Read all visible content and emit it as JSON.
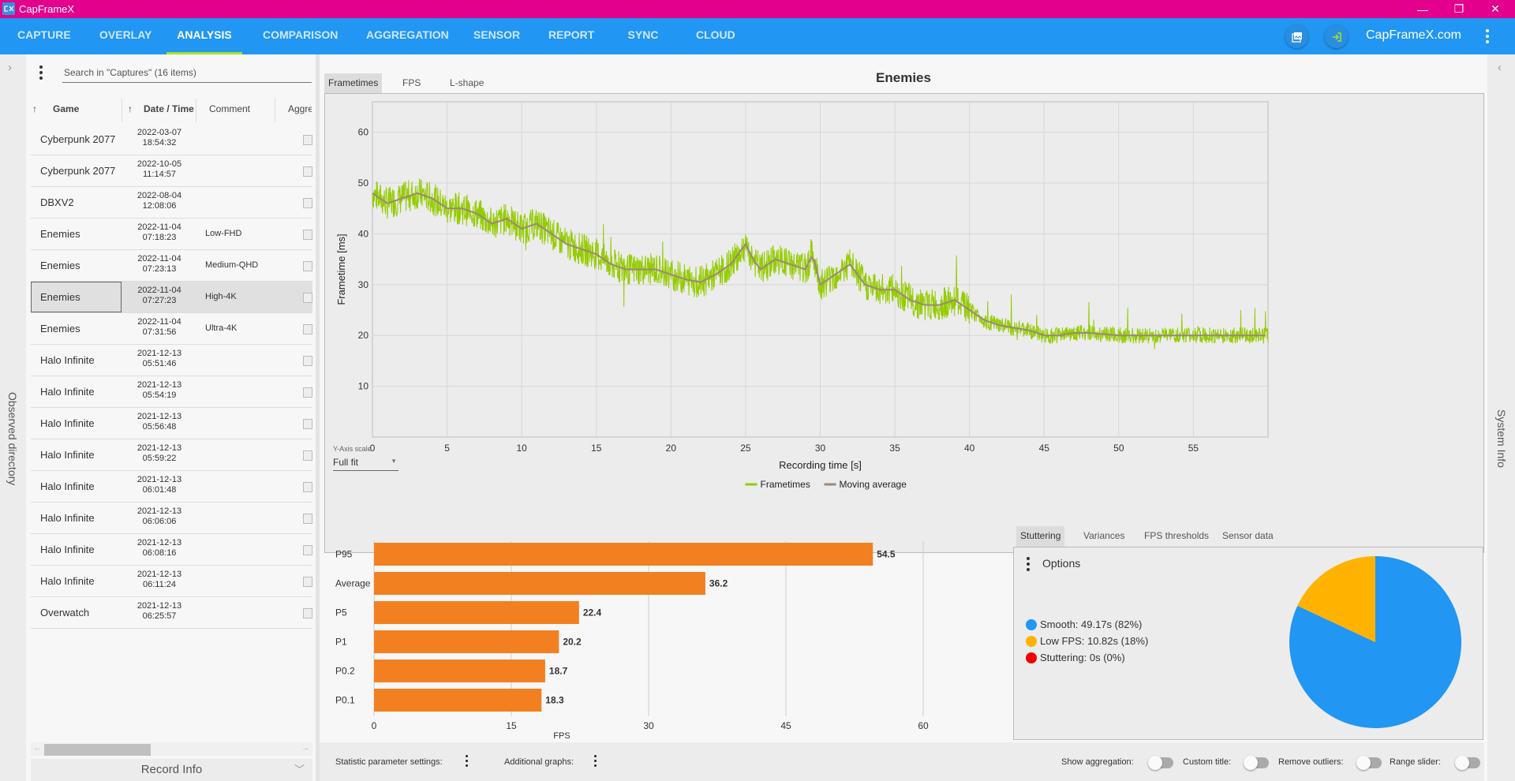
{
  "window": {
    "title": "CapFrameX",
    "controls": {
      "minimize": "—",
      "restore": "❐",
      "close": "✕"
    }
  },
  "nav": {
    "tabs": [
      {
        "label": "CAPTURE",
        "active": false
      },
      {
        "label": "OVERLAY",
        "active": false
      },
      {
        "label": "ANALYSIS",
        "active": true
      },
      {
        "label": "COMPARISON",
        "active": false
      },
      {
        "label": "AGGREGATION",
        "active": false
      },
      {
        "label": "SENSOR",
        "active": false
      },
      {
        "label": "REPORT",
        "active": false
      },
      {
        "label": "SYNC",
        "active": false
      },
      {
        "label": "CLOUD",
        "active": false
      }
    ],
    "link": "CapFrameX.com",
    "icons": {
      "screenshot": "image-gallery-icon",
      "login": "login-icon",
      "menu": "kebab-menu-icon"
    }
  },
  "left_strip": {
    "label": "Observed directory",
    "expand_icon": "chevron-right-icon"
  },
  "right_strip": {
    "label": "System Info",
    "expand_icon": "chevron-left-icon"
  },
  "captures": {
    "search_placeholder": "Search in \"Captures\" (16 items)",
    "columns": [
      "Game",
      "Date / Time",
      "Comment",
      "Aggre"
    ],
    "rows": [
      {
        "game": "Cyberpunk 2077",
        "date": "2022-03-07",
        "time": "18:54:32",
        "comment": "",
        "selected": false
      },
      {
        "game": "Cyberpunk 2077",
        "date": "2022-10-05",
        "time": "11:14:57",
        "comment": "",
        "selected": false
      },
      {
        "game": "DBXV2",
        "date": "2022-08-04",
        "time": "12:08:06",
        "comment": "",
        "selected": false
      },
      {
        "game": "Enemies",
        "date": "2022-11-04",
        "time": "07:18:23",
        "comment": "Low-FHD",
        "selected": false
      },
      {
        "game": "Enemies",
        "date": "2022-11-04",
        "time": "07:23:13",
        "comment": "Medium-QHD",
        "selected": false
      },
      {
        "game": "Enemies",
        "date": "2022-11-04",
        "time": "07:27:23",
        "comment": "High-4K",
        "selected": true
      },
      {
        "game": "Enemies",
        "date": "2022-11-04",
        "time": "07:31:56",
        "comment": "Ultra-4K",
        "selected": false
      },
      {
        "game": "Halo Infinite",
        "date": "2021-12-13",
        "time": "05:51:46",
        "comment": "",
        "selected": false
      },
      {
        "game": "Halo Infinite",
        "date": "2021-12-13",
        "time": "05:54:19",
        "comment": "",
        "selected": false
      },
      {
        "game": "Halo Infinite",
        "date": "2021-12-13",
        "time": "05:56:48",
        "comment": "",
        "selected": false
      },
      {
        "game": "Halo Infinite",
        "date": "2021-12-13",
        "time": "05:59:22",
        "comment": "",
        "selected": false
      },
      {
        "game": "Halo Infinite",
        "date": "2021-12-13",
        "time": "06:01:48",
        "comment": "",
        "selected": false
      },
      {
        "game": "Halo Infinite",
        "date": "2021-12-13",
        "time": "06:06:06",
        "comment": "",
        "selected": false
      },
      {
        "game": "Halo Infinite",
        "date": "2021-12-13",
        "time": "06:08:16",
        "comment": "",
        "selected": false
      },
      {
        "game": "Halo Infinite",
        "date": "2021-12-13",
        "time": "06:11:24",
        "comment": "",
        "selected": false
      },
      {
        "game": "Overwatch",
        "date": "2021-12-13",
        "time": "06:25:57",
        "comment": "",
        "selected": false
      }
    ],
    "record_info_label": "Record Info"
  },
  "analysis": {
    "title": "Enemies",
    "chart_tabs": [
      {
        "label": "Frametimes",
        "active": true
      },
      {
        "label": "FPS",
        "active": false
      },
      {
        "label": "L-shape",
        "active": false
      }
    ],
    "y_axis_scale": {
      "label": "Y-Axis scale",
      "value": "Full fit"
    },
    "stat_tabs": [
      {
        "label": "Stuttering",
        "active": true
      },
      {
        "label": "Variances",
        "active": false
      },
      {
        "label": "FPS thresholds",
        "active": false
      },
      {
        "label": "Sensor data",
        "active": false
      }
    ],
    "options_label": "Options",
    "footer": {
      "statistic_settings": "Statistic parameter settings:",
      "additional_graphs": "Additional graphs:",
      "toggles": [
        {
          "label": "Show aggregation:",
          "on": false
        },
        {
          "label": "Custom title:",
          "on": false
        },
        {
          "label": "Remove outliers:",
          "on": false
        },
        {
          "label": "Range slider:",
          "on": false
        }
      ]
    }
  },
  "colors": {
    "titlebar": "#e3008c",
    "nav": "#2196f3",
    "active_tab_underline": "#a5e22a",
    "frametimes": "#94cc00",
    "moving_average": "#9b8878",
    "bars": "#f28021",
    "smooth": "#2196f3",
    "low_fps": "#ffb300",
    "stuttering": "#f00000"
  },
  "chart_data": [
    {
      "type": "line",
      "title": "Enemies",
      "xlabel": "Recording time [s]",
      "ylabel": "Frametime [ms]",
      "xlim": [
        0,
        60
      ],
      "ylim": [
        0,
        66
      ],
      "xticks": [
        0,
        5,
        10,
        15,
        20,
        25,
        30,
        35,
        40,
        45,
        50,
        55
      ],
      "yticks": [
        10,
        20,
        30,
        40,
        50,
        60
      ],
      "grid": true,
      "legend": "bottom-center",
      "series": [
        {
          "name": "Frametimes",
          "note": "noisy per-frame trace around the moving average, spikes up to ~58 ms at ~3 s and down to ~12 ms at ~47 s"
        },
        {
          "name": "Moving average",
          "x": [
            0,
            1,
            2,
            3,
            4,
            5,
            6,
            7,
            8,
            9,
            10,
            11,
            12,
            13,
            14,
            15,
            16,
            17,
            18,
            19,
            20,
            21,
            22,
            23,
            24,
            25,
            25.5,
            26,
            27,
            28,
            29,
            29.5,
            30,
            31,
            32,
            33,
            34,
            35,
            36,
            37,
            38,
            39,
            40,
            41,
            42,
            43,
            44,
            45,
            46,
            47,
            48,
            50,
            52,
            54,
            56,
            58,
            60
          ],
          "y": [
            48,
            46,
            47,
            48,
            47,
            45,
            45,
            44,
            42,
            43,
            41,
            42,
            40,
            38,
            37,
            36,
            34,
            33,
            33,
            33,
            32,
            31,
            30.5,
            32,
            34,
            38,
            35,
            33,
            35,
            34,
            33,
            36,
            30,
            32,
            34,
            30,
            29,
            29,
            27,
            26,
            26,
            27,
            25,
            23,
            22,
            21.5,
            21,
            20,
            20,
            20.5,
            20.5,
            20,
            20,
            20,
            20,
            20,
            20
          ]
        }
      ]
    },
    {
      "type": "bar",
      "orientation": "horizontal",
      "categories": [
        "P95",
        "Average",
        "P5",
        "P1",
        "P0.2",
        "P0.1"
      ],
      "values": [
        54.5,
        36.2,
        22.4,
        20.2,
        18.7,
        18.3
      ],
      "xlabel": "FPS",
      "xlim": [
        0,
        60
      ],
      "xticks": [
        0,
        15,
        30,
        45,
        60
      ],
      "grid": true
    },
    {
      "type": "pie",
      "title": "Stuttering",
      "legend": "left",
      "slices": [
        {
          "label": "Smooth",
          "seconds": 49.17,
          "percent": 82,
          "text": "Smooth:  49.17s (82%)"
        },
        {
          "label": "Low FPS",
          "seconds": 10.82,
          "percent": 18,
          "text": "Low FPS:  10.82s (18%)"
        },
        {
          "label": "Stuttering",
          "seconds": 0,
          "percent": 0,
          "text": "Stuttering:  0s (0%)"
        }
      ]
    }
  ]
}
